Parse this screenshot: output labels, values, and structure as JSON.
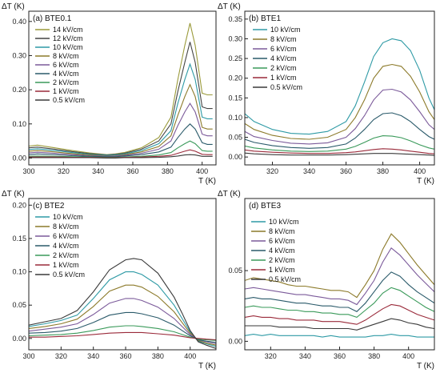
{
  "chart_data": [
    {
      "type": "line",
      "title": "(a) BTE0.1",
      "xlabel": "T (K)",
      "ylabel": "ΔT (K)",
      "xlim": [
        300,
        408
      ],
      "ylim": [
        -0.02,
        0.43
      ],
      "xticks": [
        300,
        320,
        340,
        360,
        380,
        400
      ],
      "yticks": [
        0.0,
        0.1,
        0.2,
        0.3,
        0.4
      ],
      "ytick_format": 2,
      "legend": "top-left",
      "x": [
        300,
        305,
        315,
        325,
        335,
        345,
        350,
        355,
        365,
        375,
        382,
        386,
        390,
        393,
        396,
        400,
        403,
        406
      ],
      "series": [
        {
          "name": "14 kV/cm",
          "color": "#9a9a3a",
          "values": [
            0.035,
            0.038,
            0.03,
            0.022,
            0.015,
            0.01,
            0.012,
            0.016,
            0.03,
            0.06,
            0.12,
            0.23,
            0.33,
            0.395,
            0.33,
            0.19,
            0.185,
            0.185
          ]
        },
        {
          "name": "12 kV/cm",
          "color": "#444444",
          "values": [
            0.03,
            0.032,
            0.026,
            0.019,
            0.013,
            0.009,
            0.011,
            0.014,
            0.026,
            0.05,
            0.1,
            0.195,
            0.28,
            0.34,
            0.28,
            0.15,
            0.145,
            0.145
          ]
        },
        {
          "name": "10 kV/cm",
          "color": "#2e9aa5",
          "values": [
            0.025,
            0.027,
            0.022,
            0.016,
            0.011,
            0.008,
            0.009,
            0.012,
            0.022,
            0.042,
            0.08,
            0.16,
            0.23,
            0.275,
            0.23,
            0.12,
            0.115,
            0.115
          ]
        },
        {
          "name": "8 kV/cm",
          "color": "#8c7a2a",
          "values": [
            0.02,
            0.022,
            0.018,
            0.013,
            0.009,
            0.006,
            0.007,
            0.01,
            0.018,
            0.034,
            0.065,
            0.125,
            0.18,
            0.215,
            0.18,
            0.09,
            0.085,
            0.085
          ]
        },
        {
          "name": "6 kV/cm",
          "color": "#7b5a9a",
          "values": [
            0.015,
            0.017,
            0.014,
            0.01,
            0.007,
            0.005,
            0.006,
            0.008,
            0.014,
            0.026,
            0.05,
            0.095,
            0.135,
            0.16,
            0.135,
            0.07,
            0.065,
            0.065
          ]
        },
        {
          "name": "4 kV/cm",
          "color": "#2a5a6a",
          "values": [
            0.01,
            0.012,
            0.01,
            0.007,
            0.005,
            0.004,
            0.004,
            0.006,
            0.01,
            0.018,
            0.032,
            0.06,
            0.085,
            0.1,
            0.085,
            0.045,
            0.04,
            0.04
          ]
        },
        {
          "name": "2 kV/cm",
          "color": "#3a9a5a",
          "values": [
            0.005,
            0.006,
            0.005,
            0.004,
            0.003,
            0.002,
            0.002,
            0.003,
            0.005,
            0.009,
            0.016,
            0.03,
            0.042,
            0.05,
            0.042,
            0.022,
            0.02,
            0.02
          ]
        },
        {
          "name": "1 kV/cm",
          "color": "#9a2a3a",
          "values": [
            0.003,
            0.003,
            0.003,
            0.002,
            0.002,
            0.001,
            0.001,
            0.002,
            0.003,
            0.005,
            0.008,
            0.014,
            0.02,
            0.024,
            0.02,
            0.011,
            0.01,
            0.01
          ]
        },
        {
          "name": "0.5 kV/cm",
          "color": "#3a3a3a",
          "values": [
            0.001,
            0.001,
            0.001,
            0.001,
            0.001,
            0.0,
            0.0,
            0.001,
            0.001,
            0.002,
            0.004,
            0.006,
            0.009,
            0.01,
            0.009,
            0.005,
            0.005,
            0.005
          ]
        }
      ]
    },
    {
      "type": "line",
      "title": "(b) BTE1",
      "xlabel": "T (K)",
      "ylabel": "ΔT (K)",
      "xlim": [
        305,
        408
      ],
      "ylim": [
        -0.02,
        0.37
      ],
      "xticks": [
        320,
        340,
        360,
        380,
        400
      ],
      "yticks": [
        0.0,
        0.05,
        0.1,
        0.15,
        0.2,
        0.25,
        0.3,
        0.35
      ],
      "ytick_format": 2,
      "legend": "top-left",
      "x": [
        305,
        310,
        320,
        330,
        340,
        350,
        360,
        365,
        370,
        375,
        380,
        385,
        390,
        395,
        400,
        405,
        408
      ],
      "series": [
        {
          "name": "10 kV/cm",
          "color": "#2e9aa5",
          "values": [
            0.11,
            0.09,
            0.07,
            0.06,
            0.058,
            0.065,
            0.09,
            0.13,
            0.19,
            0.255,
            0.29,
            0.3,
            0.295,
            0.27,
            0.22,
            0.15,
            0.12
          ]
        },
        {
          "name": "8 kV/cm",
          "color": "#8c7a2a",
          "values": [
            0.085,
            0.07,
            0.055,
            0.047,
            0.045,
            0.05,
            0.07,
            0.1,
            0.145,
            0.2,
            0.23,
            0.235,
            0.23,
            0.205,
            0.165,
            0.115,
            0.095
          ]
        },
        {
          "name": "6 kV/cm",
          "color": "#7b5a9a",
          "values": [
            0.065,
            0.052,
            0.042,
            0.035,
            0.033,
            0.036,
            0.05,
            0.072,
            0.105,
            0.145,
            0.17,
            0.172,
            0.165,
            0.145,
            0.115,
            0.082,
            0.07
          ]
        },
        {
          "name": "4 kV/cm",
          "color": "#2a5a6a",
          "values": [
            0.045,
            0.037,
            0.029,
            0.024,
            0.022,
            0.024,
            0.033,
            0.048,
            0.07,
            0.095,
            0.11,
            0.112,
            0.105,
            0.09,
            0.07,
            0.052,
            0.045
          ]
        },
        {
          "name": "2 kV/cm",
          "color": "#3a9a5a",
          "values": [
            0.028,
            0.023,
            0.018,
            0.015,
            0.014,
            0.015,
            0.02,
            0.027,
            0.037,
            0.048,
            0.054,
            0.053,
            0.049,
            0.041,
            0.031,
            0.023,
            0.02
          ]
        },
        {
          "name": "1 kV/cm",
          "color": "#9a2a3a",
          "values": [
            0.018,
            0.015,
            0.012,
            0.01,
            0.009,
            0.009,
            0.011,
            0.013,
            0.016,
            0.019,
            0.021,
            0.02,
            0.018,
            0.015,
            0.012,
            0.009,
            0.008
          ]
        },
        {
          "name": "0.5 kV/cm",
          "color": "#3a3a3a",
          "values": [
            0.01,
            0.008,
            0.006,
            0.005,
            0.005,
            0.005,
            0.006,
            0.007,
            0.008,
            0.009,
            0.009,
            0.009,
            0.008,
            0.007,
            0.006,
            0.005,
            0.004
          ]
        }
      ]
    },
    {
      "type": "line",
      "title": "(c) BTE2",
      "xlabel": "T (K)",
      "ylabel": "ΔT (K)",
      "xlim": [
        300,
        416
      ],
      "ylim": [
        -0.017,
        0.21
      ],
      "xticks": [
        300,
        320,
        340,
        360,
        380,
        400
      ],
      "yticks": [
        0.0,
        0.05,
        0.1,
        0.15,
        0.2
      ],
      "ytick_format": 2,
      "legend": "top-left",
      "x": [
        300,
        310,
        320,
        330,
        340,
        350,
        360,
        365,
        370,
        380,
        390,
        395,
        400,
        405,
        410,
        416
      ],
      "series": [
        {
          "name": "10 kV/cm",
          "color": "#2e9aa5",
          "values": [
            0.018,
            0.022,
            0.027,
            0.035,
            0.06,
            0.088,
            0.1,
            0.1,
            0.096,
            0.08,
            0.05,
            0.03,
            0.01,
            -0.004,
            -0.008,
            -0.012
          ]
        },
        {
          "name": "8 kV/cm",
          "color": "#8c7a2a",
          "values": [
            0.015,
            0.018,
            0.022,
            0.029,
            0.048,
            0.071,
            0.08,
            0.08,
            0.077,
            0.063,
            0.04,
            0.024,
            0.008,
            -0.003,
            -0.007,
            -0.01
          ]
        },
        {
          "name": "6 kV/cm",
          "color": "#7b5a9a",
          "values": [
            0.011,
            0.014,
            0.017,
            0.022,
            0.036,
            0.053,
            0.06,
            0.06,
            0.057,
            0.047,
            0.03,
            0.018,
            0.006,
            -0.002,
            -0.005,
            -0.008
          ]
        },
        {
          "name": "4 kV/cm",
          "color": "#2a5a6a",
          "values": [
            0.008,
            0.009,
            0.011,
            0.015,
            0.024,
            0.035,
            0.039,
            0.039,
            0.037,
            0.031,
            0.02,
            0.012,
            0.004,
            -0.002,
            -0.004,
            -0.006
          ]
        },
        {
          "name": "2 kV/cm",
          "color": "#3a9a5a",
          "values": [
            0.004,
            0.005,
            0.006,
            0.008,
            0.012,
            0.017,
            0.019,
            0.019,
            0.018,
            0.015,
            0.01,
            0.006,
            0.002,
            -0.001,
            -0.002,
            -0.003
          ]
        },
        {
          "name": "1 kV/cm",
          "color": "#9a2a3a",
          "values": [
            0.002,
            0.002,
            0.003,
            0.004,
            0.006,
            0.008,
            0.009,
            0.009,
            0.009,
            0.007,
            0.005,
            0.003,
            0.001,
            0.0,
            -0.001,
            -0.002
          ]
        },
        {
          "name": "0.5 kV/cm",
          "color": "#3a3a3a",
          "values": [
            0.02,
            0.025,
            0.03,
            0.042,
            0.07,
            0.103,
            0.118,
            0.12,
            0.118,
            0.098,
            0.062,
            0.038,
            0.012,
            -0.005,
            -0.01,
            -0.015
          ]
        }
      ]
    },
    {
      "type": "line",
      "title": "(d) BTE3",
      "xlabel": "T (K)",
      "ylabel": "ΔT (K)",
      "xlim": [
        305,
        415
      ],
      "ylim": [
        -0.006,
        0.101
      ],
      "xticks": [
        320,
        340,
        360,
        380,
        400
      ],
      "yticks": [
        0.0,
        0.05
      ],
      "ytick_format": 2,
      "legend": "top-left",
      "x": [
        305,
        310,
        315,
        320,
        325,
        330,
        335,
        340,
        345,
        350,
        355,
        360,
        365,
        370,
        375,
        380,
        385,
        390,
        395,
        400,
        405,
        410,
        415
      ],
      "series": [
        {
          "name": "10 kV/cm",
          "color": "#2e9aa5",
          "values": [
            0.004,
            0.005,
            0.004,
            0.005,
            0.004,
            0.004,
            0.004,
            0.004,
            0.004,
            0.003,
            0.004,
            0.003,
            0.003,
            0.003,
            0.003,
            0.004,
            0.004,
            0.005,
            0.004,
            0.004,
            0.003,
            0.003,
            0.003
          ]
        },
        {
          "name": "8 kV/cm",
          "color": "#8c7a2a",
          "values": [
            0.043,
            0.045,
            0.044,
            0.043,
            0.042,
            0.04,
            0.039,
            0.039,
            0.038,
            0.037,
            0.036,
            0.036,
            0.035,
            0.031,
            0.04,
            0.05,
            0.065,
            0.076,
            0.07,
            0.062,
            0.054,
            0.047,
            0.04
          ]
        },
        {
          "name": "6 kV/cm",
          "color": "#7b5a9a",
          "values": [
            0.037,
            0.038,
            0.037,
            0.036,
            0.035,
            0.034,
            0.033,
            0.033,
            0.032,
            0.031,
            0.03,
            0.03,
            0.029,
            0.026,
            0.034,
            0.043,
            0.056,
            0.066,
            0.061,
            0.054,
            0.047,
            0.041,
            0.035
          ]
        },
        {
          "name": "4 kV/cm",
          "color": "#2a5a6a",
          "values": [
            0.03,
            0.031,
            0.03,
            0.03,
            0.029,
            0.028,
            0.027,
            0.027,
            0.026,
            0.025,
            0.025,
            0.024,
            0.024,
            0.021,
            0.027,
            0.035,
            0.043,
            0.049,
            0.046,
            0.04,
            0.035,
            0.031,
            0.027
          ]
        },
        {
          "name": "2 kV/cm",
          "color": "#3a9a5a",
          "values": [
            0.024,
            0.025,
            0.024,
            0.024,
            0.023,
            0.022,
            0.022,
            0.021,
            0.021,
            0.02,
            0.02,
            0.019,
            0.019,
            0.017,
            0.022,
            0.027,
            0.034,
            0.038,
            0.036,
            0.032,
            0.028,
            0.024,
            0.021
          ]
        },
        {
          "name": "1 kV/cm",
          "color": "#9a2a3a",
          "values": [
            0.017,
            0.018,
            0.017,
            0.017,
            0.016,
            0.016,
            0.015,
            0.015,
            0.015,
            0.014,
            0.014,
            0.014,
            0.013,
            0.012,
            0.015,
            0.019,
            0.023,
            0.026,
            0.025,
            0.022,
            0.019,
            0.017,
            0.015
          ]
        },
        {
          "name": "0.5 kV/cm",
          "color": "#3a3a3a",
          "values": [
            0.011,
            0.011,
            0.011,
            0.011,
            0.01,
            0.01,
            0.01,
            0.01,
            0.009,
            0.009,
            0.009,
            0.009,
            0.009,
            0.008,
            0.01,
            0.012,
            0.014,
            0.016,
            0.015,
            0.013,
            0.012,
            0.01,
            0.009
          ]
        }
      ]
    }
  ]
}
